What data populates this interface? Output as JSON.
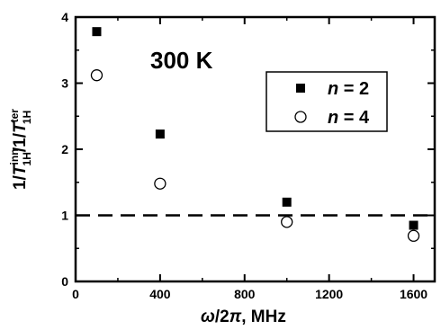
{
  "chart_data": {
    "type": "scatter",
    "annotation": "300 K",
    "xlabel": "ω/2π, MHz",
    "ylabel": "1/T_1H^inn / 1/T_1H^ter",
    "xlim": [
      0,
      1700
    ],
    "ylim": [
      0,
      4
    ],
    "x_ticks": [
      "0",
      "400",
      "800",
      "1200",
      "1600"
    ],
    "y_ticks": [
      "0",
      "1",
      "2",
      "3",
      "4"
    ],
    "reference_line": {
      "y": 1,
      "style": "dashed"
    },
    "legend_position": "top-right",
    "series": [
      {
        "name": "n = 2",
        "marker": "filled-square",
        "x": [
          100,
          400,
          1000,
          1600
        ],
        "y": [
          3.78,
          2.23,
          1.2,
          0.85
        ]
      },
      {
        "name": "n = 4",
        "marker": "open-circle",
        "x": [
          100,
          400,
          1000,
          1600
        ],
        "y": [
          3.12,
          1.48,
          0.9,
          0.69
        ]
      }
    ],
    "legend": {
      "items": [
        {
          "prefix": "n",
          "suffix": " = 2"
        },
        {
          "prefix": "n",
          "suffix": " = 4"
        }
      ]
    }
  }
}
